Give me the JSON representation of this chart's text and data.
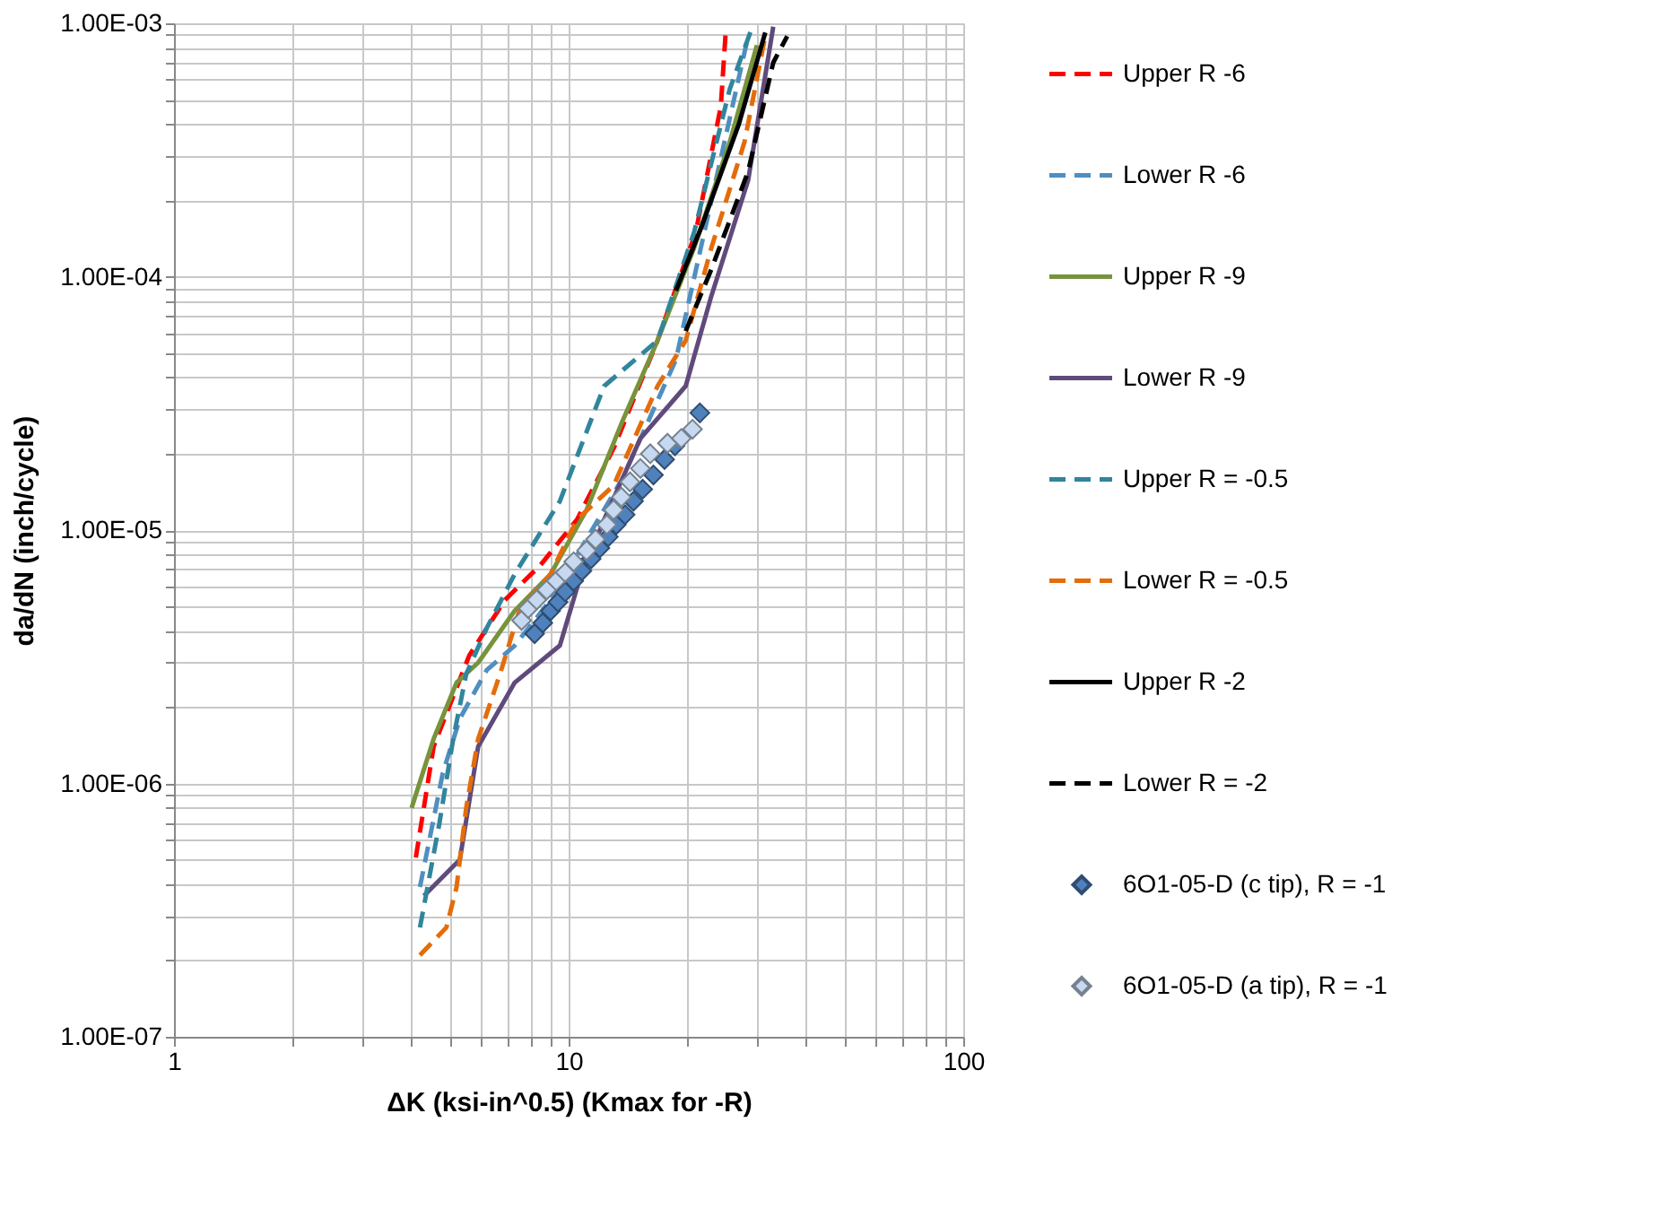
{
  "chart_data": {
    "type": "line",
    "xlabel": "ΔK (ksi-in^0.5) (Kmax for -R)",
    "ylabel": "da/dN (inch/cycle)",
    "log": "xy",
    "grid": true,
    "legend": "right",
    "xlim": [
      1,
      100
    ],
    "xticks": [
      1,
      {
        "value": 2,
        "label": null
      },
      {
        "value": 3,
        "label": null
      },
      {
        "value": 4,
        "label": null
      },
      {
        "value": 5,
        "label": null
      },
      {
        "value": 6,
        "label": null
      },
      {
        "value": 7,
        "label": null
      },
      {
        "value": 8,
        "label": null
      },
      {
        "value": 9,
        "label": null
      },
      10,
      {
        "value": 20,
        "label": null
      },
      {
        "value": 30,
        "label": null
      },
      {
        "value": 40,
        "label": null
      },
      {
        "value": 50,
        "label": null
      },
      {
        "value": 60,
        "label": null
      },
      {
        "value": 70,
        "label": null
      },
      {
        "value": 80,
        "label": null
      },
      {
        "value": 90,
        "label": null
      },
      100
    ],
    "ylim": [
      1e-07,
      0.001
    ],
    "yticks": [
      {
        "value": 1e-07,
        "label": "1.00E-07"
      },
      {
        "value": 2e-07,
        "label": null
      },
      {
        "value": 3e-07,
        "label": null
      },
      {
        "value": 4e-07,
        "label": null
      },
      {
        "value": 5e-07,
        "label": null
      },
      {
        "value": 6e-07,
        "label": null
      },
      {
        "value": 7e-07,
        "label": null
      },
      {
        "value": 8e-07,
        "label": null
      },
      {
        "value": 9e-07,
        "label": null
      },
      {
        "value": 1e-06,
        "label": "1.00E-06"
      },
      {
        "value": 2e-06,
        "label": null
      },
      {
        "value": 3e-06,
        "label": null
      },
      {
        "value": 4e-06,
        "label": null
      },
      {
        "value": 5e-06,
        "label": null
      },
      {
        "value": 6e-06,
        "label": null
      },
      {
        "value": 7e-06,
        "label": null
      },
      {
        "value": 8e-06,
        "label": null
      },
      {
        "value": 9e-06,
        "label": null
      },
      {
        "value": 1e-05,
        "label": "1.00E-05"
      },
      {
        "value": 2e-05,
        "label": null
      },
      {
        "value": 3e-05,
        "label": null
      },
      {
        "value": 4e-05,
        "label": null
      },
      {
        "value": 5e-05,
        "label": null
      },
      {
        "value": 6e-05,
        "label": null
      },
      {
        "value": 7e-05,
        "label": null
      },
      {
        "value": 8e-05,
        "label": null
      },
      {
        "value": 9e-05,
        "label": null
      },
      {
        "value": 0.0001,
        "label": "1.00E-04"
      },
      {
        "value": 0.0002,
        "label": null
      },
      {
        "value": 0.0003,
        "label": null
      },
      {
        "value": 0.0004,
        "label": null
      },
      {
        "value": 0.0005,
        "label": null
      },
      {
        "value": 0.0006,
        "label": null
      },
      {
        "value": 0.0007,
        "label": null
      },
      {
        "value": 0.0008,
        "label": null
      },
      {
        "value": 0.0009,
        "label": null
      },
      {
        "value": 0.001,
        "label": "1.00E-03"
      }
    ],
    "series": [
      {
        "name": "Upper R -6",
        "type": "line",
        "line_style": "dashed",
        "marker": "none",
        "color": "#ff0000",
        "x": [
          4.1,
          4.55,
          5.6,
          6.9,
          8.5,
          10.5,
          13,
          16.8,
          21,
          24.3,
          25
        ],
        "values": [
          5.1e-07,
          1.4e-06,
          3.2e-06,
          5.3e-06,
          7.3e-06,
          1.1e-05,
          2.1e-05,
          5.6e-05,
          0.00015,
          0.00047,
          0.00092
        ]
      },
      {
        "name": "Lower R -6",
        "type": "line",
        "line_style": "dashed",
        "marker": "none",
        "color": "#4f8fc0",
        "x": [
          4.2,
          4.8,
          5.3,
          6.2,
          7.3,
          9,
          13.7,
          18.7,
          23,
          28.5
        ],
        "values": [
          3.9e-07,
          1.1e-06,
          1.8e-06,
          2.8e-06,
          3.5e-06,
          5.3e-06,
          1.6e-05,
          4.7e-05,
          0.0002,
          0.00089
        ]
      },
      {
        "name": "Upper R -9",
        "type": "line",
        "line_style": "solid",
        "marker": "none",
        "color": "#77933c",
        "x": [
          4.0,
          4.55,
          5.2,
          5.9,
          7.3,
          9,
          11.1,
          13.7,
          16.8,
          20.8,
          25.6,
          30
        ],
        "values": [
          8e-07,
          1.5e-06,
          2.5e-06,
          3e-06,
          4.8e-06,
          6.7e-06,
          1.2e-05,
          2.7e-05,
          5.6e-05,
          0.00013,
          0.00034,
          0.00082
        ]
      },
      {
        "name": "Lower R -9",
        "type": "line",
        "line_style": "solid",
        "marker": "none",
        "color": "#604a7b",
        "x": [
          4.3,
          5.3,
          5.9,
          7.3,
          9.5,
          10.6,
          12.3,
          15.2,
          19.8,
          23,
          28.5,
          33
        ],
        "values": [
          3.6e-07,
          5e-07,
          1.4e-06,
          2.5e-06,
          3.5e-06,
          6.2e-06,
          1.1e-05,
          2.3e-05,
          3.7e-05,
          8.4e-05,
          0.00024,
          0.00097
        ]
      },
      {
        "name": "Upper R = -0.5",
        "type": "line",
        "line_style": "dashed",
        "marker": "none",
        "color": "#31859c",
        "x": [
          4.2,
          4.7,
          5.1,
          5.5,
          6.2,
          7.3,
          9.5,
          12.3,
          16.8,
          20.8,
          25.6,
          29
        ],
        "values": [
          2.7e-07,
          6.9e-07,
          1.5e-06,
          2.7e-06,
          4.1e-06,
          6.7e-06,
          1.3e-05,
          3.7e-05,
          5.6e-05,
          0.00015,
          0.00055,
          0.00094
        ]
      },
      {
        "name": "Lower R = -0.5",
        "type": "line",
        "line_style": "dashed",
        "marker": "none",
        "color": "#e46c0a",
        "x": [
          4.2,
          4.9,
          5.2,
          5.5,
          5.9,
          6.7,
          7.5,
          9,
          10.5,
          13,
          16.8,
          19.8,
          23,
          27.9,
          31.5
        ],
        "values": [
          2.1e-07,
          2.7e-07,
          3.9e-07,
          8e-07,
          1.5e-06,
          2.7e-06,
          4.8e-06,
          6.7e-06,
          1.1e-05,
          1.5e-05,
          3.7e-05,
          5.6e-05,
          0.00013,
          0.00034,
          0.00089
        ]
      },
      {
        "name": "Upper R -2",
        "type": "line",
        "line_style": "solid",
        "marker": "none",
        "color": "#000000",
        "x": [
          18.7,
          21.8,
          27,
          31.5
        ],
        "values": [
          8.8e-05,
          0.00016,
          0.0004,
          0.00092
        ]
      },
      {
        "name": "Lower R = -2",
        "type": "line",
        "line_style": "dashed",
        "marker": "none",
        "color": "#000000",
        "x": [
          19.8,
          23,
          28.5,
          33,
          35.8
        ],
        "values": [
          6.1e-05,
          0.000107,
          0.00026,
          0.0007,
          0.00089
        ]
      },
      {
        "name": "6O1-05-D (c tip), R = -1",
        "type": "scatter",
        "marker": "diamond",
        "color": "#4f81bd",
        "x": [
          8.2,
          8.6,
          9.0,
          9.4,
          9.8,
          10.3,
          10.8,
          11.4,
          12.0,
          12.6,
          13.2,
          13.9,
          14.6,
          15.4,
          16.4,
          17.5,
          18.6,
          21.5
        ],
        "values": [
          3.9e-06,
          4.3e-06,
          4.8e-06,
          5.2e-06,
          5.7e-06,
          6.3e-06,
          6.9e-06,
          7.7e-06,
          8.5e-06,
          9.4e-06,
          1.05e-05,
          1.15e-05,
          1.3e-05,
          1.45e-05,
          1.65e-05,
          1.9e-05,
          2.15e-05,
          2.9e-05
        ]
      },
      {
        "name": "6O1-05-D (a tip), R = -1",
        "type": "scatter",
        "marker": "diamond",
        "color": "#c6d9f1",
        "x": [
          7.6,
          7.9,
          8.3,
          8.8,
          9.3,
          9.8,
          10.3,
          11.1,
          11.7,
          12.5,
          13.0,
          13.6,
          14.3,
          15.2,
          16.1,
          17.8,
          19.3,
          20.6
        ],
        "values": [
          4.4e-06,
          4.9e-06,
          5.3e-06,
          5.8e-06,
          6.3e-06,
          6.8e-06,
          7.5e-06,
          8.3e-06,
          9.2e-06,
          1.05e-05,
          1.2e-05,
          1.35e-05,
          1.55e-05,
          1.75e-05,
          2e-05,
          2.2e-05,
          2.3e-05,
          2.5e-05
        ]
      }
    ]
  }
}
